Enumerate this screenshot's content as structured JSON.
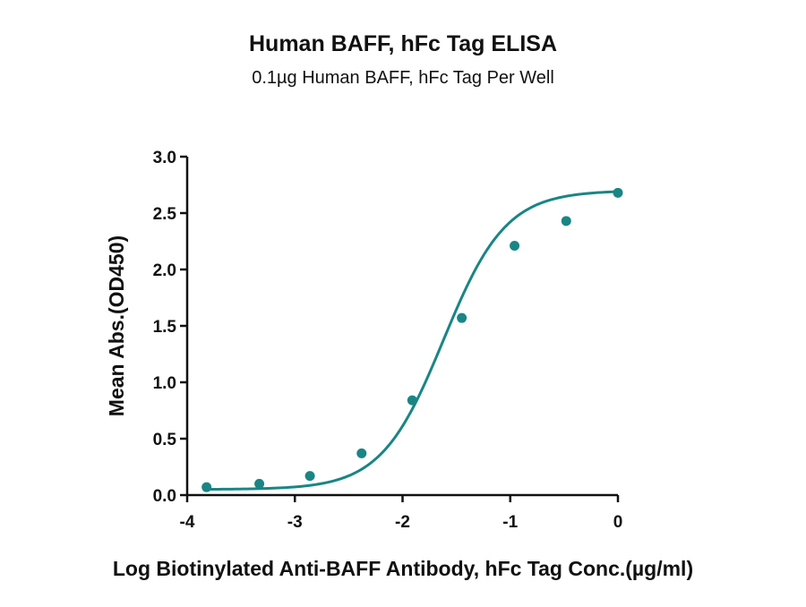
{
  "chart_data": {
    "type": "scatter",
    "title": "Human BAFF, hFc Tag ELISA",
    "subtitle": "0.1µg Human BAFF, hFc Tag Per Well",
    "xlabel": "Log Biotinylated Anti-BAFF Antibody, hFc Tag Conc.(µg/ml)",
    "ylabel": "Mean Abs.(OD450)",
    "xlim": [
      -4,
      0
    ],
    "ylim": [
      0,
      3
    ],
    "x_ticks": [
      "-4",
      "-3",
      "-2",
      "-1",
      "0"
    ],
    "y_ticks": [
      "0.0",
      "0.5",
      "1.0",
      "1.5",
      "2.0",
      "2.5",
      "3.0"
    ],
    "grid": false,
    "color": "#1a8585",
    "series": [
      {
        "x": [
          -3.82,
          -3.33,
          -2.86,
          -2.38,
          -1.91,
          -1.45,
          -0.96,
          -0.48,
          0.0
        ],
        "y": [
          0.07,
          0.1,
          0.17,
          0.37,
          0.84,
          1.57,
          2.21,
          2.43,
          2.68
        ],
        "fit": "4PL",
        "fit_params": {
          "bottom": 0.05,
          "top": 2.7,
          "logEC50": -1.62,
          "hill": 1.5
        }
      }
    ]
  }
}
